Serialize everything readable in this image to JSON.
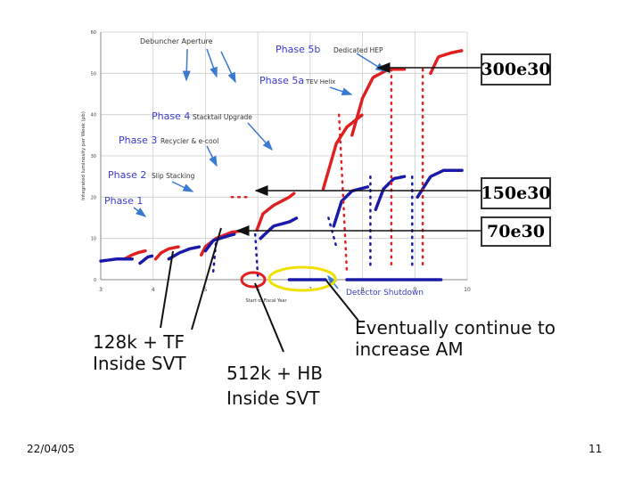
{
  "slide": {
    "date": "22/04/05",
    "page_number": "11",
    "callouts": {
      "tf": [
        "128k + TF",
        "Inside SVT"
      ],
      "hb": [
        "512k + HB",
        "Inside SVT"
      ],
      "am": [
        "Eventually continue to",
        "increase AM"
      ]
    },
    "luminosity_boxes": [
      "300e30",
      "150e30",
      "70e30"
    ]
  },
  "chart_data": {
    "type": "scatter",
    "ylabel": "Integrated luminosity per Week (pb)",
    "xlabel": "Start of Fiscal Year",
    "xlim": [
      3,
      10
    ],
    "ylim": [
      0,
      60
    ],
    "x_ticks": [
      "3",
      "4",
      "5",
      "6",
      "7",
      "8",
      "9",
      "10"
    ],
    "y_ticks": [
      "0",
      "10",
      "20",
      "30",
      "40",
      "50",
      "60"
    ],
    "annotations": {
      "debuncher": "Debuncher Aperture",
      "phase5b_title": "Phase 5b",
      "phase5b_sub": "Dedicated HEP",
      "phase5a_title": "Phase 5a",
      "phase5a_sub": "TEV Helix",
      "phase4_title": "Phase 4",
      "phase4_sub": "Stacktail Upgrade",
      "phase3_title": "Phase 3",
      "phase3_sub": "Recycler & e-cool",
      "phase2_title": "Phase 2",
      "phase2_sub": "Slip Stacking",
      "phase1_title": "Phase 1",
      "shutdown": "Detector Shutdown"
    },
    "colors": {
      "red": "#e02020",
      "blue": "#1a1aa8",
      "phase": "#3a3ad0",
      "grid": "#cccccc"
    },
    "series": [
      {
        "color": "red",
        "segments": [
          [
            [
              3.45,
              5
            ],
            [
              3.6,
              6
            ],
            [
              3.7,
              6.5
            ],
            [
              3.85,
              7
            ]
          ],
          [
            [
              4.05,
              5
            ],
            [
              4.15,
              6.5
            ],
            [
              4.3,
              7.5
            ],
            [
              4.5,
              8
            ]
          ],
          [
            [
              4.92,
              6
            ],
            [
              5.0,
              8
            ],
            [
              5.2,
              10
            ],
            [
              5.5,
              11.5
            ],
            [
              5.8,
              12
            ]
          ],
          [
            [
              5.98,
              12
            ],
            [
              6.1,
              16
            ],
            [
              6.3,
              18
            ],
            [
              6.6,
              20
            ],
            [
              6.7,
              21
            ]
          ],
          [
            [
              7.25,
              22
            ],
            [
              7.5,
              33
            ],
            [
              7.7,
              37
            ],
            [
              8.0,
              40
            ]
          ],
          [
            [
              7.8,
              35
            ],
            [
              8.0,
              44
            ],
            [
              8.2,
              49
            ],
            [
              8.5,
              51
            ],
            [
              8.8,
              51
            ]
          ],
          [
            [
              9.3,
              50
            ],
            [
              9.45,
              54
            ],
            [
              9.7,
              55
            ],
            [
              9.9,
              55.5
            ]
          ]
        ]
      },
      {
        "color": "blue",
        "segments": [
          [
            [
              3.0,
              4.5
            ],
            [
              3.3,
              5
            ],
            [
              3.5,
              5
            ],
            [
              3.6,
              5
            ]
          ],
          [
            [
              3.75,
              4
            ],
            [
              3.9,
              5.5
            ],
            [
              4.0,
              5.8
            ]
          ],
          [
            [
              4.3,
              5
            ],
            [
              4.5,
              6.5
            ],
            [
              4.7,
              7.5
            ],
            [
              4.9,
              8
            ]
          ],
          [
            [
              5.0,
              7
            ],
            [
              5.15,
              9.5
            ],
            [
              5.4,
              10.5
            ],
            [
              5.55,
              11
            ]
          ],
          [
            [
              6.05,
              10
            ],
            [
              6.3,
              13
            ],
            [
              6.6,
              14
            ],
            [
              6.75,
              15
            ]
          ],
          [
            [
              7.45,
              13
            ],
            [
              7.6,
              19
            ],
            [
              7.8,
              21.5
            ],
            [
              8.1,
              22.5
            ]
          ],
          [
            [
              8.25,
              17
            ],
            [
              8.4,
              22
            ],
            [
              8.6,
              24.5
            ],
            [
              8.8,
              25
            ]
          ],
          [
            [
              9.05,
              20
            ],
            [
              9.3,
              25
            ],
            [
              9.55,
              26.5
            ],
            [
              9.9,
              26.5
            ]
          ]
        ]
      },
      {
        "color": "red",
        "dashed": true,
        "segments": [
          [
            [
              5.5,
              20
            ],
            [
              5.8,
              20
            ]
          ],
          [
            [
              7.55,
              40
            ],
            [
              7.7,
              2
            ]
          ],
          [
            [
              8.55,
              51
            ],
            [
              8.55,
              3
            ]
          ],
          [
            [
              9.15,
              51
            ],
            [
              9.15,
              3
            ]
          ]
        ]
      },
      {
        "color": "blue",
        "dashed": true,
        "segments": [
          [
            [
              5.15,
              2
            ],
            [
              5.2,
              9
            ]
          ],
          [
            [
              5.95,
              11
            ],
            [
              6.0,
              1
            ]
          ],
          [
            [
              7.35,
              15
            ],
            [
              7.5,
              8
            ]
          ],
          [
            [
              8.15,
              25
            ],
            [
              8.15,
              3
            ]
          ],
          [
            [
              8.95,
              25
            ],
            [
              8.95,
              3
            ]
          ]
        ]
      },
      {
        "color": "blue",
        "segments": [
          [
            [
              6.6,
              0
            ],
            [
              7.3,
              0
            ]
          ],
          [
            [
              7.7,
              0
            ],
            [
              9.5,
              0
            ]
          ]
        ]
      }
    ]
  }
}
